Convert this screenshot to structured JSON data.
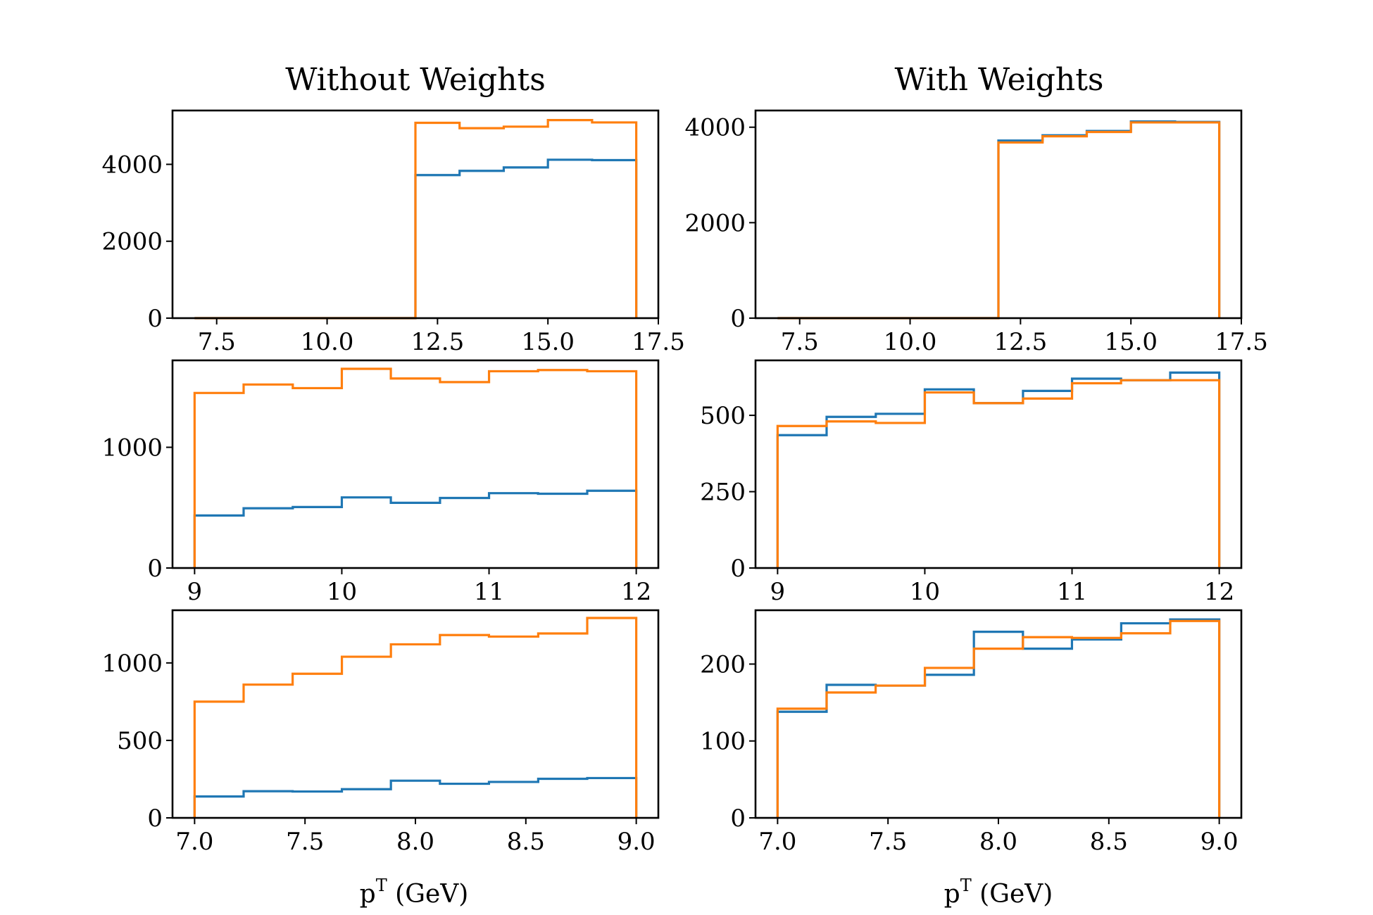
{
  "titles": {
    "left": "Without Weights",
    "right": "With Weights"
  },
  "x_axis_label": {
    "base": "p",
    "superscript": "T",
    "unit": " (GeV)"
  },
  "colors": {
    "series_1": "#1f77b4",
    "series_2": "#ff7f0e",
    "axes": "#000000",
    "background": "#ffffff"
  },
  "chart_data": [
    {
      "type": "histogram-step",
      "title": "Without Weights",
      "xlabel": "",
      "ylabel": "",
      "xlim": [
        6.5,
        17.5
      ],
      "ylim": [
        0,
        5400
      ],
      "xticks": [
        7.5,
        10.0,
        12.5,
        15.0,
        17.5
      ],
      "xtick_labels": [
        "7.5",
        "10.0",
        "12.5",
        "15.0",
        "17.5"
      ],
      "yticks": [
        0,
        2000,
        4000
      ],
      "ytick_labels": [
        "0",
        "2000",
        "4000"
      ],
      "bin_edges": [
        7,
        8,
        9,
        10,
        11,
        12,
        13,
        14,
        15,
        16,
        17
      ],
      "series": [
        {
          "color": "#1f77b4",
          "values": [
            0,
            0,
            0,
            0,
            0,
            3720,
            3830,
            3920,
            4120,
            4110
          ]
        },
        {
          "color": "#ff7f0e",
          "values": [
            0,
            0,
            0,
            0,
            0,
            5080,
            4940,
            4980,
            5150,
            5090
          ]
        }
      ],
      "grid": false,
      "legend": "none"
    },
    {
      "type": "histogram-step",
      "title": "With Weights",
      "xlabel": "",
      "ylabel": "",
      "xlim": [
        6.5,
        17.5
      ],
      "ylim": [
        0,
        4350
      ],
      "xticks": [
        7.5,
        10.0,
        12.5,
        15.0,
        17.5
      ],
      "xtick_labels": [
        "7.5",
        "10.0",
        "12.5",
        "15.0",
        "17.5"
      ],
      "yticks": [
        0,
        2000,
        4000
      ],
      "ytick_labels": [
        "0",
        "2000",
        "4000"
      ],
      "bin_edges": [
        7,
        8,
        9,
        10,
        11,
        12,
        13,
        14,
        15,
        16,
        17
      ],
      "series": [
        {
          "color": "#1f77b4",
          "values": [
            0,
            0,
            0,
            0,
            0,
            3720,
            3830,
            3920,
            4120,
            4110
          ]
        },
        {
          "color": "#ff7f0e",
          "values": [
            0,
            0,
            0,
            0,
            0,
            3680,
            3810,
            3900,
            4100,
            4100
          ]
        }
      ],
      "grid": false,
      "legend": "none"
    },
    {
      "type": "histogram-step",
      "xlabel": "",
      "ylabel": "",
      "xlim": [
        8.85,
        12.15
      ],
      "ylim": [
        0,
        1720
      ],
      "xticks": [
        9,
        10,
        11,
        12
      ],
      "xtick_labels": [
        "9",
        "10",
        "11",
        "12"
      ],
      "yticks": [
        0,
        1000
      ],
      "ytick_labels": [
        "0",
        "1000"
      ],
      "bin_edges": [
        9.0,
        9.333,
        9.667,
        10.0,
        10.333,
        10.667,
        11.0,
        11.333,
        11.667,
        12.0
      ],
      "series": [
        {
          "color": "#1f77b4",
          "values": [
            435,
            495,
            505,
            585,
            540,
            580,
            620,
            615,
            640
          ]
        },
        {
          "color": "#ff7f0e",
          "values": [
            1450,
            1520,
            1490,
            1650,
            1570,
            1540,
            1630,
            1640,
            1630
          ]
        }
      ],
      "grid": false,
      "legend": "none"
    },
    {
      "type": "histogram-step",
      "xlabel": "",
      "ylabel": "",
      "xlim": [
        8.85,
        12.15
      ],
      "ylim": [
        0,
        680
      ],
      "xticks": [
        9,
        10,
        11,
        12
      ],
      "xtick_labels": [
        "9",
        "10",
        "11",
        "12"
      ],
      "yticks": [
        0,
        250,
        500
      ],
      "ytick_labels": [
        "0",
        "250",
        "500"
      ],
      "bin_edges": [
        9.0,
        9.333,
        9.667,
        10.0,
        10.333,
        10.667,
        11.0,
        11.333,
        11.667,
        12.0
      ],
      "series": [
        {
          "color": "#1f77b4",
          "values": [
            435,
            495,
            505,
            585,
            540,
            580,
            620,
            615,
            640
          ]
        },
        {
          "color": "#ff7f0e",
          "values": [
            465,
            480,
            475,
            575,
            540,
            555,
            605,
            615,
            615
          ]
        }
      ],
      "grid": false,
      "legend": "none"
    },
    {
      "type": "histogram-step",
      "xlabel": "pT (GeV)",
      "ylabel": "",
      "xlim": [
        6.9,
        9.1
      ],
      "ylim": [
        0,
        1340
      ],
      "xticks": [
        7.0,
        7.5,
        8.0,
        8.5,
        9.0
      ],
      "xtick_labels": [
        "7.0",
        "7.5",
        "8.0",
        "8.5",
        "9.0"
      ],
      "yticks": [
        0,
        500,
        1000
      ],
      "ytick_labels": [
        "0",
        "500",
        "1000"
      ],
      "bin_edges": [
        7.0,
        7.222,
        7.444,
        7.667,
        7.889,
        8.111,
        8.333,
        8.556,
        8.778,
        9.0
      ],
      "series": [
        {
          "color": "#1f77b4",
          "values": [
            138,
            172,
            170,
            185,
            240,
            220,
            232,
            252,
            257
          ]
        },
        {
          "color": "#ff7f0e",
          "values": [
            750,
            860,
            930,
            1040,
            1120,
            1180,
            1170,
            1190,
            1290
          ]
        }
      ],
      "grid": false,
      "legend": "none"
    },
    {
      "type": "histogram-step",
      "xlabel": "pT (GeV)",
      "ylabel": "",
      "xlim": [
        6.9,
        9.1
      ],
      "ylim": [
        0,
        270
      ],
      "xticks": [
        7.0,
        7.5,
        8.0,
        8.5,
        9.0
      ],
      "xtick_labels": [
        "7.0",
        "7.5",
        "8.0",
        "8.5",
        "9.0"
      ],
      "yticks": [
        0,
        100,
        200
      ],
      "ytick_labels": [
        "0",
        "100",
        "200"
      ],
      "bin_edges": [
        7.0,
        7.222,
        7.444,
        7.667,
        7.889,
        8.111,
        8.333,
        8.556,
        8.778,
        9.0
      ],
      "series": [
        {
          "color": "#1f77b4",
          "values": [
            138,
            173,
            172,
            186,
            242,
            220,
            232,
            253,
            258
          ]
        },
        {
          "color": "#ff7f0e",
          "values": [
            142,
            163,
            172,
            195,
            220,
            235,
            234,
            240,
            256
          ]
        }
      ],
      "grid": false,
      "legend": "none"
    }
  ]
}
